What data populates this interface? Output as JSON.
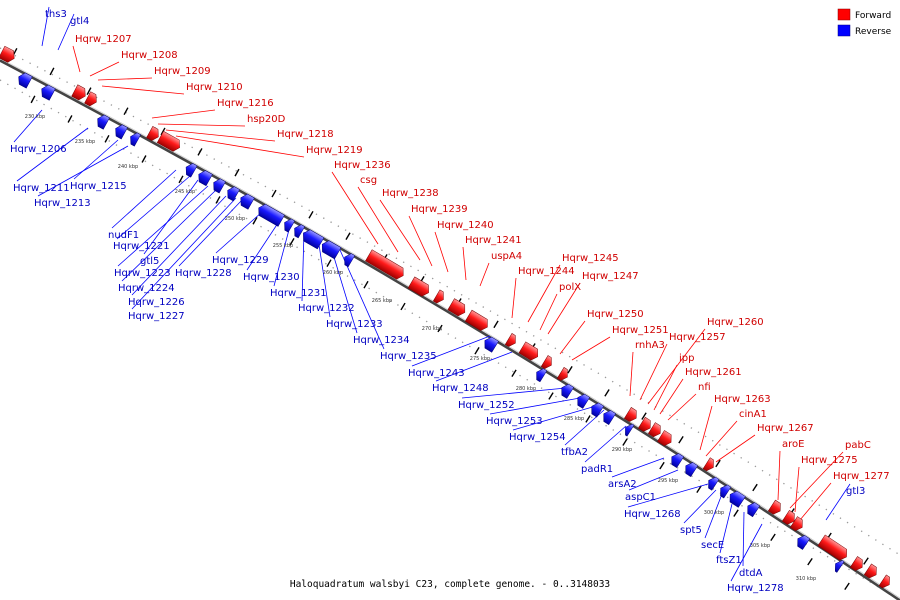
{
  "legend": {
    "forward": {
      "label": "Forward",
      "color": "#ff0000"
    },
    "reverse": {
      "label": "Reverse",
      "color": "#0000ff"
    }
  },
  "caption": "Haloquadratum walsbyi C23, complete genome. - 0..3148033",
  "ticks": [
    "230 kbp",
    "235 kbp",
    "240 kbp",
    "245 kbp",
    "250 kbp",
    "255 kbp",
    "260 kbp",
    "265 kbp",
    "270 kbp",
    "275 kbp",
    "280 kbp",
    "285 kbp",
    "290 kbp",
    "295 kbp",
    "300 kbp",
    "305 kbp",
    "310 kbp"
  ],
  "forward_labels": [
    "Hqrw_1207",
    "Hqrw_1208",
    "Hqrw_1209",
    "Hqrw_1210",
    "Hqrw_1216",
    "hsp20D",
    "Hqrw_1218",
    "Hqrw_1219",
    "Hqrw_1236",
    "csg",
    "Hqrw_1238",
    "Hqrw_1239",
    "Hqrw_1240",
    "Hqrw_1241",
    "uspA4",
    "Hqrw_1244",
    "Hqrw_1245",
    "polX",
    "Hqrw_1247",
    "Hqrw_1250",
    "Hqrw_1251",
    "rnhA3",
    "Hqrw_1257",
    "Hqrw_1260",
    "ipp",
    "Hqrw_1261",
    "nfi",
    "Hqrw_1263",
    "cinA1",
    "Hqrw_1267",
    "aroE",
    "pabC",
    "Hqrw_1275",
    "Hqrw_1277"
  ],
  "reverse_labels": [
    "ths3",
    "gtl4",
    "Hqrw_1206",
    "Hqrw_1211",
    "Hqrw_1215",
    "Hqrw_1213",
    "nudF1",
    "Hqrw_1221",
    "gtl5",
    "Hqrw_1223",
    "Hqrw_1224",
    "Hqrw_1226",
    "Hqrw_1227",
    "Hqrw_1228",
    "Hqrw_1229",
    "Hqrw_1230",
    "Hqrw_1231",
    "Hqrw_1232",
    "Hqrw_1233",
    "Hqrw_1234",
    "Hqrw_1235",
    "Hqrw_1243",
    "Hqrw_1248",
    "Hqrw_1252",
    "Hqrw_1253",
    "Hqrw_1254",
    "tfbA2",
    "padR1",
    "arsA2",
    "aspC1",
    "Hqrw_1268",
    "spt5",
    "secE",
    "ftsZ1",
    "dtdA",
    "Hqrw_1278",
    "gtl3"
  ]
}
